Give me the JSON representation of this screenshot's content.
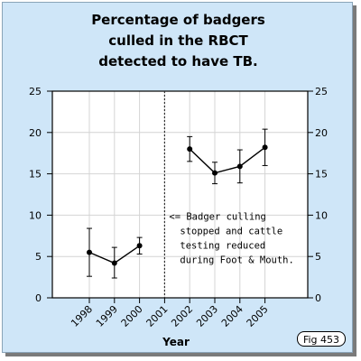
{
  "figure_label": "Fig 453",
  "chart_data": {
    "type": "line",
    "title_lines": [
      "Percentage of badgers",
      "culled in the RBCT",
      "detected to have TB."
    ],
    "xlabel": "Year",
    "ylabel": "",
    "categories": [
      "1998",
      "1999",
      "2000",
      "2001",
      "2002",
      "2003",
      "2004",
      "2005"
    ],
    "ylim": [
      0,
      25
    ],
    "yticks": [
      0,
      5,
      10,
      15,
      20,
      25
    ],
    "grid": true,
    "segments": [
      {
        "points": [
          {
            "x": "1998",
            "y": 5.5,
            "err_low": 2.6,
            "err_high": 8.4
          },
          {
            "x": "1999",
            "y": 4.2,
            "err_low": 2.4,
            "err_high": 6.1
          },
          {
            "x": "2000",
            "y": 6.3,
            "err_low": 5.3,
            "err_high": 7.3
          }
        ]
      },
      {
        "points": [
          {
            "x": "2002",
            "y": 18.0,
            "err_low": 16.5,
            "err_high": 19.5
          },
          {
            "x": "2003",
            "y": 15.1,
            "err_low": 13.8,
            "err_high": 16.4
          },
          {
            "x": "2004",
            "y": 15.9,
            "err_low": 13.9,
            "err_high": 17.9
          },
          {
            "x": "2005",
            "y": 18.2,
            "err_low": 16.0,
            "err_high": 20.4
          }
        ]
      }
    ],
    "vline": {
      "x": "2001",
      "style": "dotted"
    },
    "annotation": {
      "lines": [
        "<= Badger culling",
        "stopped and cattle",
        "testing reduced",
        "during Foot & Mouth."
      ],
      "anchor_x": "2001",
      "y_top": 10.2
    },
    "colors": {
      "background": "#cfe6f8",
      "plot_background": "#ffffff",
      "grid": "#d4d4d4",
      "series": "#000000"
    }
  }
}
